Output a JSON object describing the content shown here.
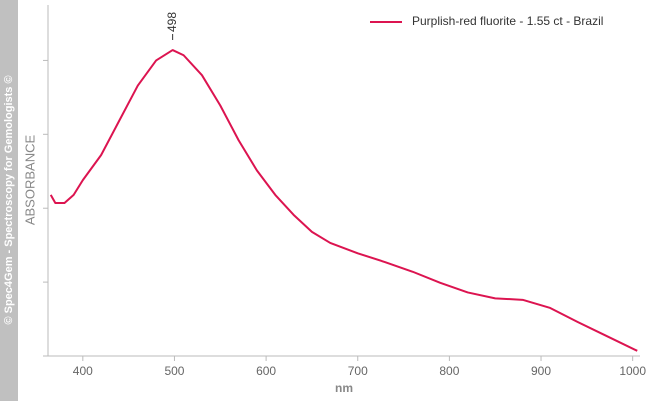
{
  "watermark": "© Spec4Gem - Spectroscopy for Gemologists ©",
  "chart_data": {
    "type": "line",
    "xlabel": "nm",
    "ylabel": "ABSORBANCE",
    "x": [
      365,
      370,
      380,
      390,
      400,
      420,
      440,
      460,
      480,
      498,
      510,
      530,
      550,
      570,
      590,
      610,
      630,
      650,
      670,
      700,
      730,
      760,
      790,
      820,
      850,
      880,
      910,
      940,
      970,
      1005
    ],
    "series": [
      {
        "name": "Purplish-red fluorite - 1.55 ct - Brazil",
        "color": "#dc1450",
        "values": [
          2.18,
          2.07,
          2.07,
          2.18,
          2.38,
          2.72,
          3.19,
          3.66,
          4.0,
          4.14,
          4.07,
          3.8,
          3.39,
          2.92,
          2.51,
          2.18,
          1.91,
          1.68,
          1.53,
          1.39,
          1.27,
          1.14,
          0.99,
          0.86,
          0.78,
          0.76,
          0.65,
          0.46,
          0.28,
          0.07
        ]
      }
    ],
    "peak_labels": [
      498
    ],
    "xlim": [
      362,
      1008
    ],
    "xticks": [
      400,
      500,
      600,
      700,
      800,
      900,
      1000
    ],
    "ylim": [
      0,
      4.75
    ],
    "yticks": [
      0,
      1,
      2,
      3,
      4
    ],
    "legend": "top-right"
  }
}
